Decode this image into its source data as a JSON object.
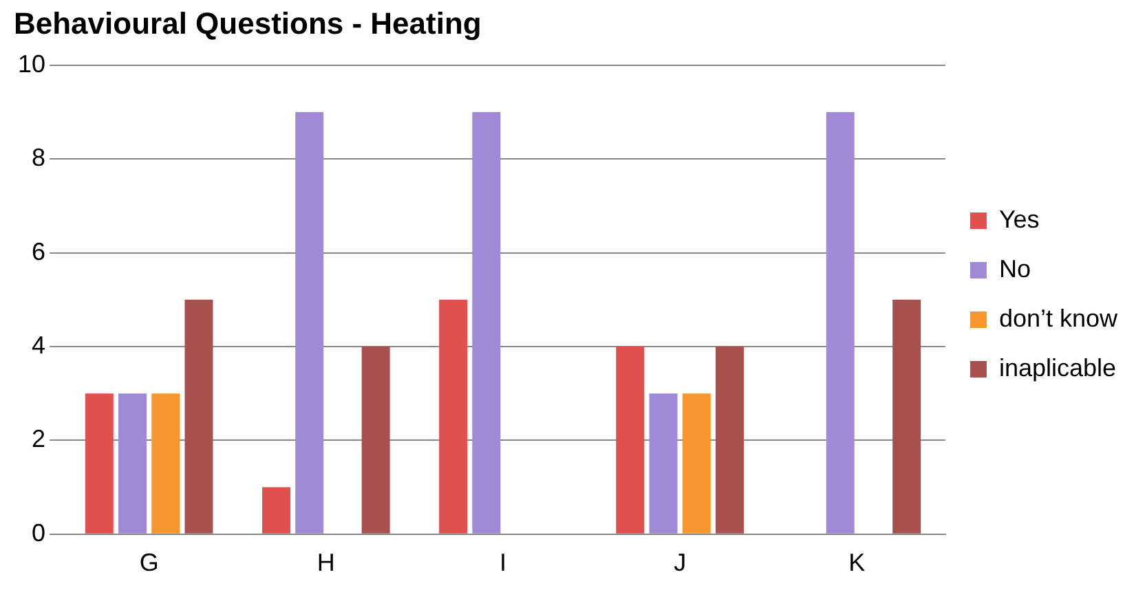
{
  "chart_data": {
    "type": "bar",
    "title": "Behavioural Questions - Heating",
    "categories": [
      "G",
      "H",
      "I",
      "J",
      "K"
    ],
    "series": [
      {
        "name": "Yes",
        "color": "#e0504e",
        "values": [
          3,
          1,
          5,
          4,
          0
        ]
      },
      {
        "name": "No",
        "color": "#a08ad8",
        "values": [
          3,
          9,
          9,
          3,
          9
        ]
      },
      {
        "name": "don’t know",
        "color": "#f7962e",
        "values": [
          3,
          0,
          0,
          3,
          0
        ]
      },
      {
        "name": "inaplicable",
        "color": "#a8504e",
        "values": [
          5,
          4,
          0,
          4,
          5
        ]
      }
    ],
    "ylim": [
      0,
      10
    ],
    "yticks": [
      0,
      2,
      4,
      6,
      8,
      10
    ],
    "grid": "y",
    "legend": "right"
  }
}
